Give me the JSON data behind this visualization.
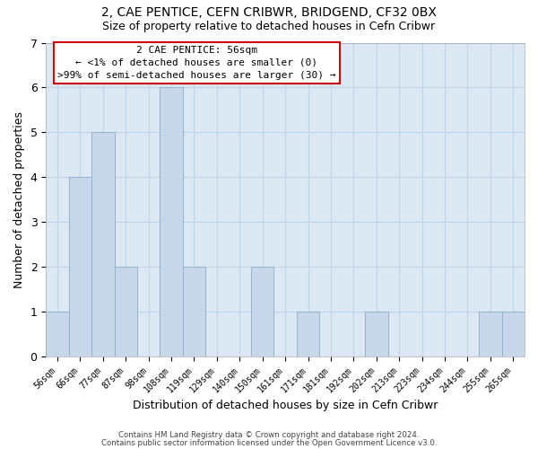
{
  "title1": "2, CAE PENTICE, CEFN CRIBWR, BRIDGEND, CF32 0BX",
  "title2": "Size of property relative to detached houses in Cefn Cribwr",
  "xlabel": "Distribution of detached houses by size in Cefn Cribwr",
  "ylabel": "Number of detached properties",
  "bin_labels": [
    "56sqm",
    "66sqm",
    "77sqm",
    "87sqm",
    "98sqm",
    "108sqm",
    "119sqm",
    "129sqm",
    "140sqm",
    "150sqm",
    "161sqm",
    "171sqm",
    "181sqm",
    "192sqm",
    "202sqm",
    "213sqm",
    "223sqm",
    "234sqm",
    "244sqm",
    "255sqm",
    "265sqm"
  ],
  "bar_heights": [
    1,
    4,
    5,
    2,
    0,
    6,
    2,
    0,
    0,
    2,
    0,
    1,
    0,
    0,
    1,
    0,
    0,
    0,
    0,
    1,
    1
  ],
  "bar_color": "#c8d8ea",
  "bar_edgecolor": "#90b4cc",
  "annotation_title": "2 CAE PENTICE: 56sqm",
  "annotation_line1": "← <1% of detached houses are smaller (0)",
  "annotation_line2": ">99% of semi-detached houses are larger (30) →",
  "annotation_box_edgecolor": "#cc0000",
  "grid_color": "#c0d4e8",
  "background_color": "#dce8f4",
  "ylim": [
    0,
    7
  ],
  "yticks": [
    0,
    1,
    2,
    3,
    4,
    5,
    6,
    7
  ],
  "footer1": "Contains HM Land Registry data © Crown copyright and database right 2024.",
  "footer2": "Contains public sector information licensed under the Open Government Licence v3.0."
}
